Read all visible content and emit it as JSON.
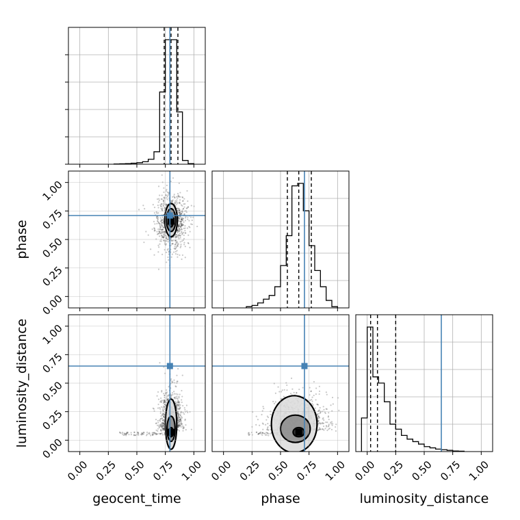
{
  "params": [
    "geocent_time",
    "phase",
    "luminosity_distance"
  ],
  "axis_labels": {
    "x": [
      "geocent_time",
      "phase",
      "luminosity_distance"
    ],
    "y": [
      "",
      "phase",
      "luminosity_distance"
    ]
  },
  "tick_labels": [
    "0.00",
    "0.25",
    "0.50",
    "0.75",
    "1.00"
  ],
  "colors": {
    "truth": "#4682b4",
    "hist": "#000000",
    "grid": "#b0b0b0",
    "quantile": "#000000"
  },
  "chart_data": {
    "type": "corner",
    "params": [
      "geocent_time",
      "phase",
      "luminosity_distance"
    ],
    "truths": {
      "geocent_time": 0.79,
      "phase": 0.71,
      "luminosity_distance": 0.65
    },
    "quantiles": {
      "geocent_time": [
        0.74,
        0.8,
        0.86
      ],
      "phase": [
        0.56,
        0.66,
        0.77
      ],
      "luminosity_distance": [
        0.03,
        0.09,
        0.25
      ]
    },
    "axis_range": [
      -0.1,
      1.1
    ],
    "ticks": [
      0.0,
      0.25,
      0.5,
      0.75,
      1.0
    ],
    "grid": true,
    "histograms": {
      "geocent_time": {
        "bin_edges": [
          0.3,
          0.35,
          0.4,
          0.45,
          0.5,
          0.55,
          0.6,
          0.65,
          0.7,
          0.75,
          0.8,
          0.85,
          0.9,
          0.95,
          1.0
        ],
        "counts": [
          0.2,
          0.3,
          0.5,
          0.8,
          1.2,
          2,
          4,
          10,
          58,
          100,
          100,
          42,
          3,
          0.5
        ]
      },
      "phase": {
        "bin_edges": [
          0.2,
          0.25,
          0.3,
          0.35,
          0.4,
          0.45,
          0.5,
          0.55,
          0.6,
          0.65,
          0.7,
          0.75,
          0.8,
          0.85,
          0.9,
          0.95,
          1.0
        ],
        "counts": [
          1,
          2,
          4,
          7,
          10,
          17,
          34,
          58,
          98,
          100,
          78,
          50,
          30,
          17,
          6,
          1
        ]
      },
      "luminosity_distance": {
        "bin_edges": [
          -0.05,
          0.0,
          0.05,
          0.1,
          0.15,
          0.2,
          0.25,
          0.3,
          0.35,
          0.4,
          0.45,
          0.5,
          0.55,
          0.6,
          0.65,
          0.7,
          0.75,
          0.8,
          0.85
        ],
        "counts": [
          27,
          100,
          60,
          55,
          40,
          22,
          18,
          13,
          10,
          8,
          6,
          4,
          3,
          2,
          1.5,
          1,
          0.5,
          0.3
        ]
      }
    },
    "scatter_pairs": [
      {
        "x": "geocent_time",
        "y": "phase",
        "center": [
          0.8,
          0.66
        ],
        "spread": [
          0.07,
          0.12
        ]
      },
      {
        "x": "geocent_time",
        "y": "luminosity_distance",
        "center": [
          0.8,
          0.08
        ],
        "spread": [
          0.05,
          0.12
        ]
      },
      {
        "x": "phase",
        "y": "luminosity_distance",
        "center": [
          0.65,
          0.08
        ],
        "spread": [
          0.13,
          0.1
        ]
      }
    ],
    "contours": [
      {
        "x": "geocent_time",
        "y": "phase",
        "levels": [
          [
            0.8,
            0.66,
            0.02,
            0.05
          ],
          [
            0.8,
            0.67,
            0.04,
            0.1
          ],
          [
            0.8,
            0.67,
            0.055,
            0.145
          ]
        ]
      },
      {
        "x": "geocent_time",
        "y": "luminosity_distance",
        "levels": [
          [
            0.8,
            0.07,
            0.02,
            0.04
          ],
          [
            0.8,
            0.1,
            0.035,
            0.11
          ],
          [
            0.8,
            0.14,
            0.05,
            0.22
          ]
        ]
      },
      {
        "x": "phase",
        "y": "luminosity_distance",
        "levels": [
          [
            0.66,
            0.07,
            0.05,
            0.04
          ],
          [
            0.63,
            0.1,
            0.13,
            0.12
          ],
          [
            0.62,
            0.14,
            0.2,
            0.25
          ]
        ]
      }
    ]
  }
}
